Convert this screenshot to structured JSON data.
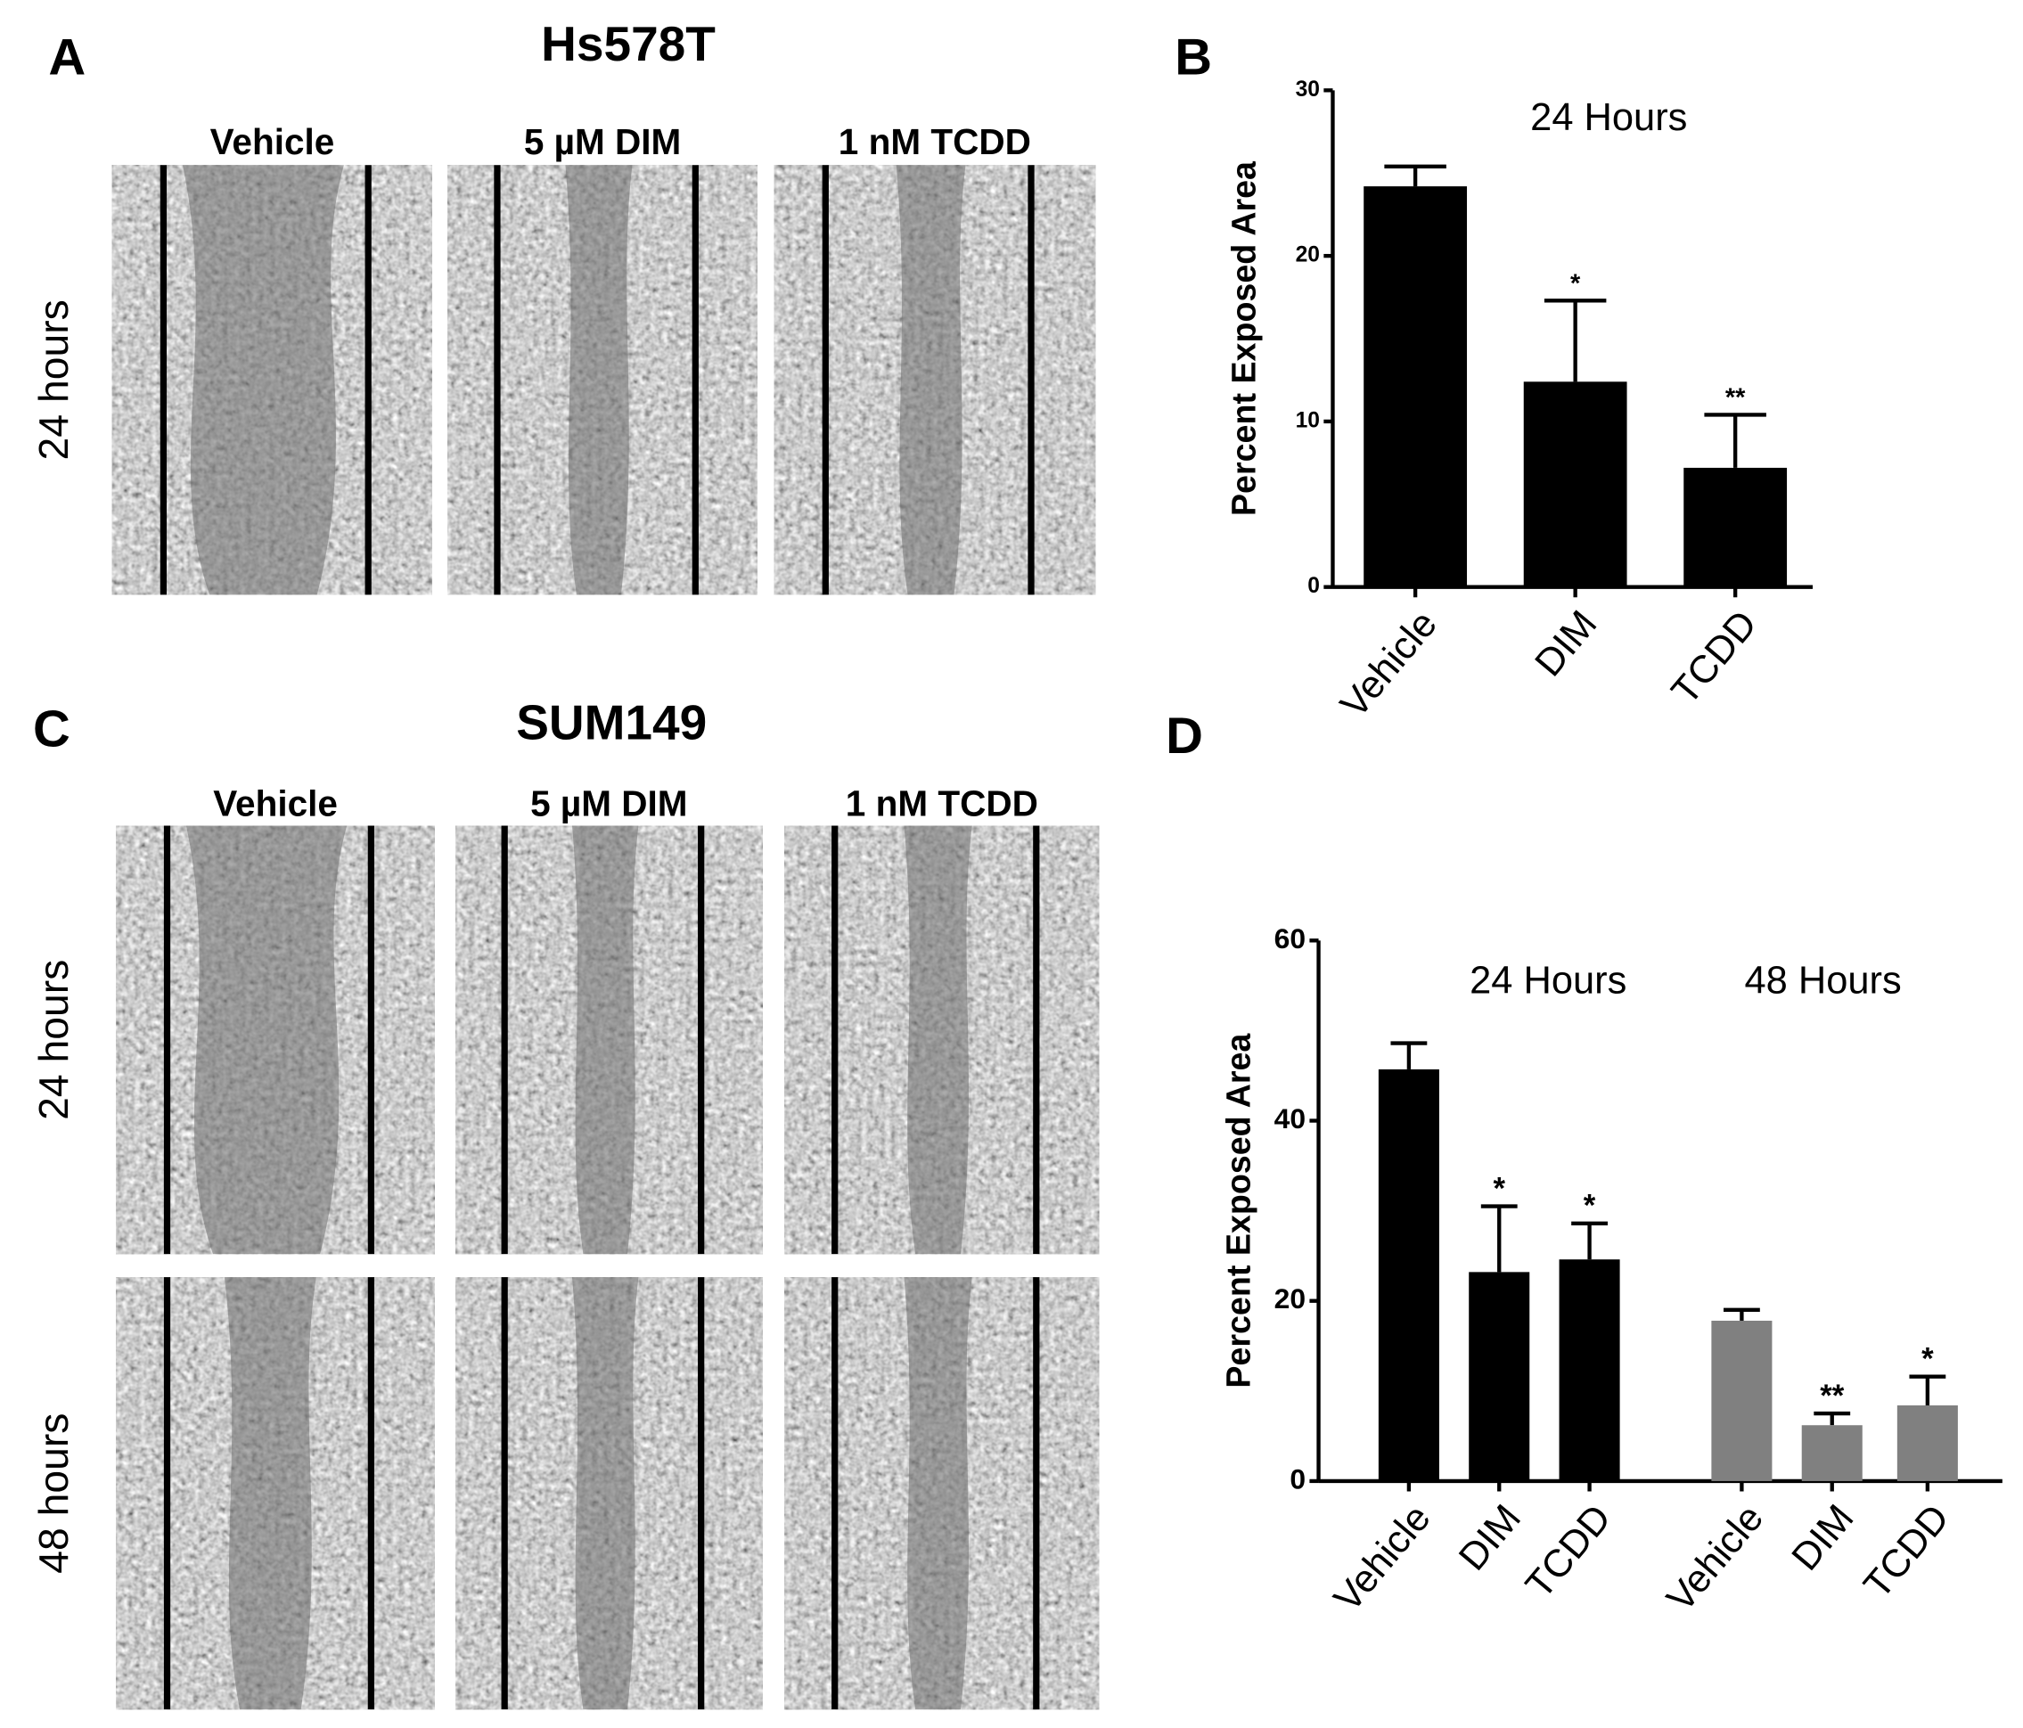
{
  "figure": {
    "panel_labels": [
      "A",
      "B",
      "C",
      "D"
    ],
    "hs578t": {
      "title": "Hs578T",
      "columns": [
        "Vehicle",
        "5 µM DIM",
        "1 nM TCDD"
      ],
      "rows": [
        "24 hours"
      ]
    },
    "sum149": {
      "title": "SUM149",
      "columns": [
        "Vehicle",
        "5 µM DIM",
        "1 nM TCDD"
      ],
      "rows": [
        "24 hours",
        "48 hours"
      ]
    }
  },
  "chart_data": [
    {
      "type": "bar",
      "title": "24 Hours",
      "ylabel": "Percent Exposed Area",
      "categories": [
        "Vehicle",
        "DIM",
        "TCDD"
      ],
      "values": [
        24.2,
        12.4,
        7.2
      ],
      "errors": [
        1.2,
        4.9,
        3.2
      ],
      "significance": [
        null,
        "*",
        "**"
      ],
      "color": "#000000",
      "ylim": [
        0,
        30
      ],
      "yticks": [
        0,
        10,
        20,
        30
      ]
    },
    {
      "type": "bar",
      "ylabel": "Percent Exposed Area",
      "series": [
        {
          "name": "24 Hours",
          "color": "#000000",
          "categories": [
            "Vehicle",
            "DIM",
            "TCDD"
          ],
          "values": [
            45.7,
            23.2,
            24.6
          ],
          "errors": [
            2.9,
            7.3,
            4.0
          ],
          "significance": [
            null,
            "*",
            "*"
          ]
        },
        {
          "name": "48 Hours",
          "color": "#808080",
          "categories": [
            "Vehicle",
            "DIM",
            "TCDD"
          ],
          "values": [
            17.8,
            6.2,
            8.4
          ],
          "errors": [
            1.2,
            1.3,
            3.2
          ],
          "significance": [
            null,
            "**",
            "*"
          ]
        }
      ],
      "ylim": [
        0,
        60
      ],
      "yticks": [
        0,
        20,
        40,
        60
      ]
    }
  ]
}
